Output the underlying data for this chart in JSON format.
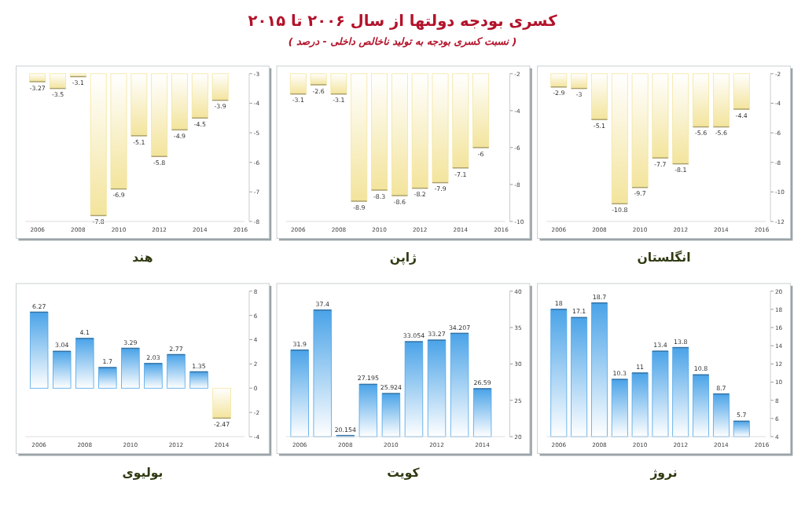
{
  "chart_data": [
    {
      "type": "bar",
      "title": "انگلستان",
      "annotations": [
        "کسری بودجه دولتها از سال ۲۰۰۶ تا ۲۰۱۵",
        "( نسبت کسری بودجه به تولید ناخالص داخلی - درصد )"
      ],
      "x": [
        2006,
        2007,
        2008,
        2009,
        2010,
        2011,
        2012,
        2013,
        2014,
        2015
      ],
      "values": [
        -2.9,
        -3,
        -5.1,
        -10.8,
        -9.7,
        -7.7,
        -8.1,
        -5.6,
        -5.6,
        -4.4
      ],
      "colors": [
        "#f3e49c",
        "#f3e49c",
        "#f3e49c",
        "#f3e49c",
        "#f3e49c",
        "#f3e49c",
        "#f3e49c",
        "#f3e49c",
        "#f3e49c",
        "#f3e49c"
      ],
      "data_labels": true,
      "xlim": [
        2005.4,
        2016.2
      ],
      "xticks": [
        2006,
        2008,
        2010,
        2012,
        2014,
        2016
      ],
      "ylim": [
        -12,
        -2
      ],
      "yticks": [
        -2,
        -4,
        -6,
        -8,
        -10,
        -12
      ]
    },
    {
      "type": "bar",
      "title": "ژاپن",
      "x": [
        2006,
        2007,
        2008,
        2009,
        2010,
        2011,
        2012,
        2013,
        2014,
        2015
      ],
      "values": [
        -3.1,
        -2.6,
        -3.1,
        -8.9,
        -8.3,
        -8.6,
        -8.2,
        -7.9,
        -7.1,
        -6
      ],
      "colors": [
        "#f3e49c",
        "#f3e49c",
        "#f3e49c",
        "#f3e49c",
        "#f3e49c",
        "#f3e49c",
        "#f3e49c",
        "#f3e49c",
        "#f3e49c",
        "#f3e49c"
      ],
      "data_labels": true,
      "xlim": [
        2005.4,
        2016.2
      ],
      "xticks": [
        2006,
        2008,
        2010,
        2012,
        2014,
        2016
      ],
      "ylim": [
        -10,
        -2
      ],
      "yticks": [
        -2,
        -4,
        -6,
        -8,
        -10
      ]
    },
    {
      "type": "bar",
      "title": "هند",
      "x": [
        2006,
        2007,
        2008,
        2009,
        2010,
        2011,
        2012,
        2013,
        2014,
        2015
      ],
      "values": [
        -3.27,
        -3.5,
        -3.1,
        -7.8,
        -6.9,
        -5.1,
        -5.8,
        -4.9,
        -4.5,
        -3.9
      ],
      "colors": [
        "#f3e49c",
        "#f3e49c",
        "#f3e49c",
        "#f3e49c",
        "#f3e49c",
        "#f3e49c",
        "#f3e49c",
        "#f3e49c",
        "#f3e49c",
        "#f3e49c"
      ],
      "data_labels": true,
      "xlim": [
        2005.4,
        2016.2
      ],
      "xticks": [
        2006,
        2008,
        2010,
        2012,
        2014,
        2016
      ],
      "ylim": [
        -8,
        -3
      ],
      "yticks": [
        -3,
        -4,
        -5,
        -6,
        -7,
        -8
      ]
    },
    {
      "type": "bar",
      "title": "نروژ",
      "x": [
        2006,
        2007,
        2008,
        2009,
        2010,
        2011,
        2012,
        2013,
        2014,
        2015
      ],
      "values": [
        18,
        17.1,
        18.7,
        10.3,
        11,
        13.4,
        13.8,
        10.8,
        8.7,
        5.7
      ],
      "colors": [
        "#4aa3e8",
        "#4aa3e8",
        "#4aa3e8",
        "#4aa3e8",
        "#4aa3e8",
        "#4aa3e8",
        "#4aa3e8",
        "#4aa3e8",
        "#4aa3e8",
        "#4aa3e8"
      ],
      "data_labels": true,
      "xlim": [
        2005.4,
        2016.2
      ],
      "xticks": [
        2006,
        2008,
        2010,
        2012,
        2014,
        2016
      ],
      "ylim": [
        4,
        20
      ],
      "yticks": [
        4,
        6,
        8,
        10,
        12,
        14,
        16,
        18,
        20
      ]
    },
    {
      "type": "bar",
      "title": "کویت",
      "x": [
        2006,
        2007,
        2008,
        2009,
        2010,
        2011,
        2012,
        2013,
        2014
      ],
      "values": [
        31.9,
        37.4,
        20.154,
        27.195,
        25.924,
        33.054,
        33.27,
        34.207,
        26.59
      ],
      "colors": [
        "#4aa3e8",
        "#4aa3e8",
        "#4aa3e8",
        "#4aa3e8",
        "#4aa3e8",
        "#4aa3e8",
        "#4aa3e8",
        "#4aa3e8",
        "#4aa3e8"
      ],
      "data_labels": true,
      "xlim": [
        2005.4,
        2015
      ],
      "xticks": [
        2006,
        2008,
        2010,
        2012,
        2014
      ],
      "ylim": [
        20,
        40
      ],
      "yticks": [
        20,
        25,
        30,
        35,
        40
      ]
    },
    {
      "type": "bar",
      "title": "بولیوی",
      "x": [
        2006,
        2007,
        2008,
        2009,
        2010,
        2011,
        2012,
        2013,
        2014
      ],
      "values": [
        6.27,
        3.04,
        4.1,
        1.7,
        3.29,
        2.03,
        2.77,
        1.35,
        -2.47
      ],
      "colors": [
        "#4aa3e8",
        "#4aa3e8",
        "#4aa3e8",
        "#4aa3e8",
        "#4aa3e8",
        "#4aa3e8",
        "#4aa3e8",
        "#4aa3e8",
        "#f3e49c"
      ],
      "data_labels": true,
      "xlim": [
        2005.4,
        2015
      ],
      "xticks": [
        2006,
        2008,
        2010,
        2012,
        2014
      ],
      "ylim": [
        -4,
        8
      ],
      "yticks": [
        -4,
        -2,
        0,
        2,
        4,
        6,
        8
      ]
    }
  ]
}
